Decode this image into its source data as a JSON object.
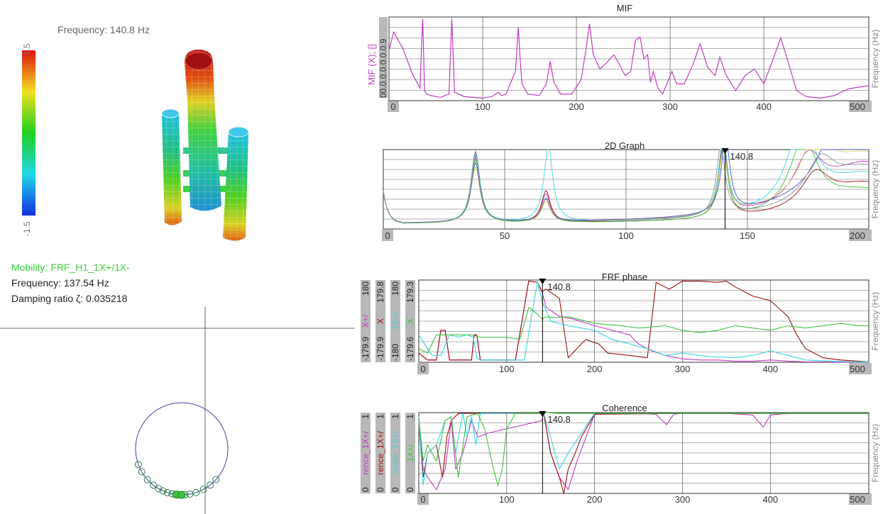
{
  "left": {
    "frequency_label": "Frequency: 140.8 Hz",
    "colorbar": {
      "max_label": "1.5",
      "min_label": "-1.5"
    },
    "mode_info": {
      "mobility": "Mobility: FRF_H1_1X+/1X-",
      "frequency": "Frequency: 137.54 Hz",
      "damping": "Damping ratio ζ: 0.035218"
    }
  },
  "colors": {
    "magenta": "#c23bc2",
    "darkred": "#9a1010",
    "cyan": "#38d6e0",
    "green": "#3ec43e",
    "grid": "#444444",
    "tick_box": "#b8b8b8"
  },
  "chart_data": [
    {
      "type": "line",
      "title": "MIF",
      "xlabel": "Frequency (Hz)",
      "ylabel": "MIF (X); []",
      "y_ticks": [
        "0",
        "0.",
        "0.",
        "0.",
        "0.",
        "0.",
        "0.",
        "0.9"
      ],
      "x_ticks": [
        "0",
        "100",
        "200",
        "300",
        "400",
        "500"
      ],
      "xlim": [
        0,
        512
      ],
      "ylim": [
        0,
        1
      ],
      "series": [
        {
          "color": "#c23bc2",
          "x": [
            0,
            5,
            15,
            25,
            33,
            36,
            38,
            40,
            45,
            55,
            64,
            67,
            70,
            80,
            100,
            110,
            117,
            120,
            125,
            135,
            138,
            140,
            142,
            148,
            160,
            168,
            172,
            176,
            183,
            195,
            205,
            210,
            214,
            218,
            225,
            232,
            240,
            245,
            252,
            258,
            263,
            268,
            272,
            276,
            279,
            282,
            287,
            292,
            302,
            307,
            315,
            325,
            332,
            340,
            348,
            353,
            360,
            370,
            380,
            390,
            400,
            410,
            418,
            425,
            435,
            445,
            460,
            475,
            490,
            500,
            512
          ],
          "y": [
            0.6,
            0.82,
            0.62,
            0.32,
            0.15,
            0.98,
            0.12,
            0.08,
            0.06,
            0.04,
            0.08,
            0.98,
            0.1,
            0.05,
            0.03,
            0.05,
            0.1,
            0.06,
            0.08,
            0.35,
            0.88,
            0.5,
            0.2,
            0.08,
            0.06,
            0.2,
            0.47,
            0.22,
            0.08,
            0.08,
            0.25,
            0.6,
            0.92,
            0.55,
            0.38,
            0.45,
            0.55,
            0.45,
            0.3,
            0.35,
            0.72,
            0.76,
            0.5,
            0.55,
            0.22,
            0.35,
            0.15,
            0.08,
            0.35,
            0.2,
            0.2,
            0.45,
            0.68,
            0.4,
            0.3,
            0.52,
            0.3,
            0.12,
            0.3,
            0.38,
            0.2,
            0.5,
            0.75,
            0.5,
            0.12,
            0.05,
            0.03,
            0.06,
            0.14,
            0.16,
            0.18
          ]
        }
      ]
    },
    {
      "type": "line",
      "title": "2D Graph",
      "xlabel": "Frequency (Hz)",
      "x_ticks": [
        "0",
        "50",
        "100",
        "150",
        "200"
      ],
      "xlim": [
        0,
        200
      ],
      "ylim": [
        0,
        1
      ],
      "cursor": {
        "x": 140.8,
        "label": "140.8"
      },
      "series": [
        {
          "color": "#c23bc2",
          "peaks": [
            [
              38,
              0.85
            ],
            [
              67,
              0.35
            ],
            [
              140,
              0.95
            ],
            [
              175,
              0.55
            ],
            [
              200,
              0.75
            ]
          ]
        },
        {
          "color": "#9a1010",
          "peaks": [
            [
              38,
              0.9
            ],
            [
              67,
              0.4
            ],
            [
              140,
              0.92
            ],
            [
              178,
              0.4
            ],
            [
              200,
              0.5
            ]
          ]
        },
        {
          "color": "#38d6e0",
          "peaks": [
            [
              38,
              0.88
            ],
            [
              68,
              0.95
            ],
            [
              140,
              0.96
            ],
            [
              172,
              1.0
            ],
            [
              200,
              0.6
            ]
          ]
        },
        {
          "color": "#3ec43e",
          "peaks": [
            [
              38,
              0.8
            ],
            [
              67,
              0.3
            ],
            [
              140,
              0.85
            ],
            [
              173,
              0.9
            ],
            [
              200,
              0.4
            ]
          ]
        },
        {
          "color": "#e0d060",
          "peaks": [
            [
              38,
              0.7
            ],
            [
              67,
              0.25
            ],
            [
              140,
              0.8
            ],
            [
              178,
              0.7
            ],
            [
              200,
              0.85
            ]
          ]
        },
        {
          "color": "#5050c8",
          "peaks": [
            [
              38,
              0.75
            ],
            [
              67,
              0.28
            ],
            [
              141,
              0.93
            ],
            [
              185,
              0.5
            ],
            [
              200,
              0.95
            ]
          ]
        },
        {
          "color": "#909090",
          "peaks": [
            [
              38,
              0.82
            ],
            [
              67,
              0.3
            ],
            [
              139,
              0.88
            ],
            [
              180,
              0.45
            ],
            [
              200,
              0.7
            ]
          ]
        }
      ]
    },
    {
      "type": "line",
      "title": "FRF phase",
      "xlabel": "Frequency (Hz)",
      "x_ticks": [
        "0",
        "100",
        "200",
        "300",
        "400",
        "500"
      ],
      "xlim": [
        0,
        512
      ],
      "ylim": [
        -180,
        180
      ],
      "cursor": {
        "x": 140.8,
        "label": "140.8"
      },
      "axes": [
        {
          "label": "X+/",
          "top": "180",
          "bottom": "-179.9",
          "color": "#c23bc2"
        },
        {
          "label": "X",
          "top": "179.8",
          "bottom": "-179.9",
          "color": "#9a1010"
        },
        {
          "label": "1X+/",
          "top": "180",
          "bottom": "-180",
          "color": "#38d6e0"
        },
        {
          "label": "X",
          "top": "179.3",
          "bottom": "-179.6",
          "color": "#3ec43e"
        }
      ],
      "series": [
        {
          "color": "#c23bc2",
          "x": [
            0,
            10,
            20,
            25,
            30,
            35,
            40,
            60,
            63,
            66,
            70,
            100,
            110,
            125,
            135,
            140,
            145,
            160,
            175,
            200,
            220,
            240,
            250,
            265,
            280,
            300,
            320,
            340,
            360,
            380,
            400,
            420,
            440,
            460,
            480,
            500,
            512
          ],
          "y": [
            -140,
            -170,
            -170,
            -40,
            -40,
            -170,
            -170,
            -170,
            -60,
            -60,
            -170,
            -170,
            -170,
            175,
            170,
            130,
            60,
            20,
            10,
            -20,
            -40,
            -60,
            -100,
            -130,
            -150,
            -165,
            -170,
            -170,
            -175,
            -175,
            -170,
            -175,
            -178,
            -178,
            -179,
            -179,
            -179
          ]
        },
        {
          "color": "#9a1010",
          "x": [
            0,
            10,
            20,
            25,
            30,
            35,
            40,
            60,
            63,
            66,
            70,
            100,
            110,
            125,
            135,
            140,
            145,
            160,
            170,
            190,
            205,
            215,
            240,
            260,
            270,
            285,
            300,
            320,
            340,
            350,
            360,
            380,
            400,
            420,
            430,
            440,
            460,
            480,
            500,
            512
          ],
          "y": [
            -140,
            -170,
            -170,
            -40,
            -40,
            -170,
            -170,
            -170,
            -60,
            -60,
            -170,
            -170,
            -170,
            175,
            170,
            130,
            140,
            100,
            -160,
            -80,
            -100,
            -140,
            -150,
            -160,
            170,
            140,
            175,
            175,
            170,
            175,
            150,
            110,
            90,
            20,
            -60,
            -120,
            -160,
            -170,
            -175,
            -178
          ]
        },
        {
          "color": "#38d6e0",
          "x": [
            0,
            15,
            25,
            35,
            45,
            55,
            62,
            66,
            70,
            100,
            120,
            135,
            140,
            150,
            170,
            200,
            220,
            240,
            260,
            280,
            300,
            330,
            360,
            380,
            400,
            420,
            440,
            470,
            500,
            512
          ],
          "y": [
            -60,
            -150,
            -150,
            -60,
            -70,
            -60,
            -70,
            -160,
            -170,
            -170,
            -170,
            175,
            90,
            0,
            -20,
            -40,
            -80,
            -100,
            -120,
            -150,
            -140,
            -155,
            -160,
            -150,
            -130,
            -150,
            -170,
            -175,
            -178,
            -178
          ]
        },
        {
          "color": "#3ec43e",
          "x": [
            0,
            10,
            20,
            30,
            40,
            50,
            60,
            70,
            80,
            100,
            115,
            125,
            135,
            140,
            145,
            155,
            170,
            200,
            230,
            250,
            280,
            300,
            320,
            340,
            360,
            380,
            400,
            420,
            440,
            460,
            480,
            500,
            512
          ],
          "y": [
            -120,
            -140,
            -60,
            -60,
            -60,
            -60,
            -60,
            -70,
            -70,
            -70,
            -80,
            60,
            30,
            10,
            20,
            15,
            20,
            -10,
            -20,
            -30,
            -20,
            -40,
            -50,
            -40,
            -20,
            -30,
            -40,
            -20,
            -30,
            -20,
            -10,
            -20,
            -20
          ]
        }
      ]
    },
    {
      "type": "line",
      "title": "Coherence",
      "xlabel": "Frequency (Hz)",
      "x_ticks": [
        "0",
        "100",
        "200",
        "300",
        "400",
        "500"
      ],
      "xlim": [
        0,
        512
      ],
      "ylim": [
        0,
        1
      ],
      "cursor": {
        "x": 140.8,
        "label": "140.8"
      },
      "axes": [
        {
          "label": "rence_1X+/",
          "top": "1",
          "bottom": "0",
          "color": "#c23bc2"
        },
        {
          "label": "rence_1X+/",
          "top": "1",
          "bottom": "0",
          "color": "#9a1010"
        },
        {
          "label": "rence_1X+/",
          "top": "1",
          "bottom": "0",
          "color": "#38d6e0"
        },
        {
          "label": "1X+/",
          "top": "1",
          "bottom": "0",
          "color": "#3ec43e"
        }
      ],
      "series": [
        {
          "color": "#c23bc2",
          "x": [
            0,
            5,
            10,
            20,
            30,
            37,
            42,
            50,
            60,
            67,
            80,
            100,
            120,
            140,
            142,
            150,
            160,
            170,
            180,
            200,
            220,
            250,
            270,
            282,
            290,
            300,
            350,
            380,
            392,
            400,
            420,
            460,
            512
          ],
          "y": [
            0.9,
            0.3,
            0.2,
            0.05,
            0.3,
            0.9,
            0.3,
            0.5,
            0.9,
            0.7,
            0.75,
            0.8,
            0.85,
            0.9,
            1.0,
            0.5,
            0.2,
            0.05,
            0.4,
            0.98,
            0.99,
            0.99,
            0.98,
            0.85,
            0.98,
            0.99,
            0.99,
            0.97,
            0.82,
            0.97,
            0.99,
            0.99,
            0.99
          ]
        },
        {
          "color": "#9a1010",
          "x": [
            0,
            5,
            10,
            20,
            27,
            32,
            37,
            45,
            55,
            67,
            80,
            100,
            140,
            142,
            150,
            160,
            165,
            170,
            178,
            185,
            200,
            300,
            512
          ],
          "y": [
            0.85,
            0.2,
            0.5,
            0.6,
            0.2,
            0.7,
            0.9,
            0.99,
            0.99,
            0.99,
            0.99,
            0.99,
            0.99,
            1.0,
            0.5,
            0.2,
            0.0,
            0.3,
            0.5,
            0.7,
            0.98,
            0.99,
            0.99
          ]
        },
        {
          "color": "#38d6e0",
          "x": [
            0,
            5,
            10,
            20,
            30,
            37,
            42,
            50,
            55,
            60,
            65,
            70,
            80,
            100,
            140,
            142,
            150,
            160,
            170,
            200,
            300,
            512
          ],
          "y": [
            0.9,
            0.1,
            0.5,
            0.6,
            0.9,
            0.95,
            0.5,
            0.99,
            0.7,
            0.95,
            0.6,
            0.99,
            0.99,
            0.99,
            0.99,
            1.0,
            0.7,
            0.3,
            0.5,
            0.99,
            0.99,
            0.99
          ]
        },
        {
          "color": "#3ec43e",
          "x": [
            0,
            5,
            10,
            20,
            30,
            37,
            45,
            55,
            67,
            75,
            85,
            90,
            95,
            100,
            110,
            140,
            142,
            160,
            200,
            300,
            512
          ],
          "y": [
            0.95,
            0.4,
            0.6,
            0.4,
            0.9,
            0.95,
            0.2,
            0.95,
            0.99,
            0.8,
            0.3,
            0.1,
            0.3,
            0.8,
            0.99,
            0.99,
            1.0,
            0.99,
            0.99,
            0.99,
            0.99
          ]
        }
      ]
    },
    {
      "type": "scatter",
      "title": "",
      "circle_points_deg": [
        200,
        210,
        222,
        232,
        240,
        246,
        252,
        258,
        262,
        266,
        270,
        274,
        280,
        288,
        298,
        308,
        318
      ],
      "highlight_deg": [
        264,
        270
      ]
    }
  ]
}
